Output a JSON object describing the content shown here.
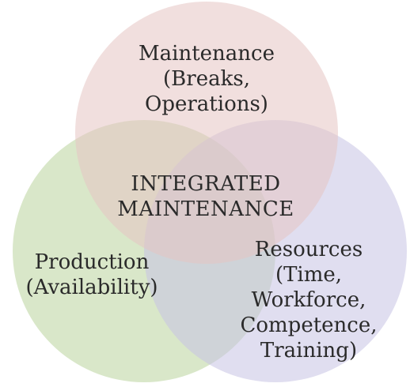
{
  "colors": {
    "maintenance_circle": "#e6c5c3",
    "production_circle": "#b9d49d",
    "resources_circle": "#c6c3e3"
  },
  "maintenance": {
    "line1": "Maintenance",
    "line2": "(Breaks,",
    "line3": "Operations)"
  },
  "center": {
    "line1": "INTEGRATED",
    "line2": "MAINTENANCE"
  },
  "production": {
    "line1": "Production",
    "line2": "(Availability)"
  },
  "resources": {
    "line1": "Resources",
    "line2": "(Time,",
    "line3": "Workforce,",
    "line4": "Competence,",
    "line5": "Training)"
  }
}
